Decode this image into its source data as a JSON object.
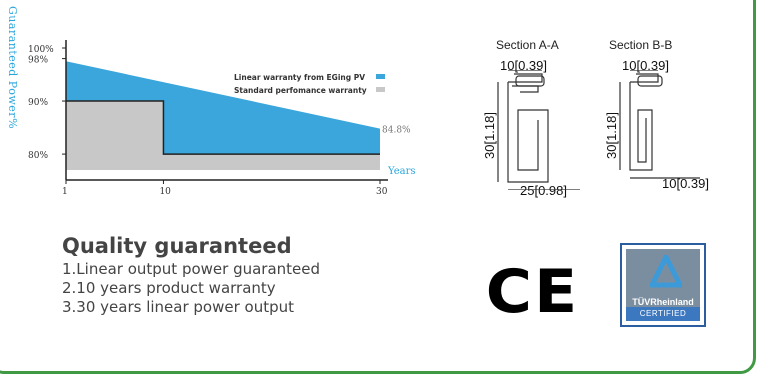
{
  "chart_data": {
    "type": "area",
    "ylabel": "Guaranteed Power%",
    "xlabel": "Years",
    "x_ticks": [
      "1",
      "10",
      "30"
    ],
    "y_ticks": [
      "100%",
      "98%",
      "90%",
      "80%"
    ],
    "series": [
      {
        "name": "Linear warranty from EGing PV",
        "color": "#3aa6dc",
        "points": [
          [
            1,
            97.5
          ],
          [
            30,
            84.8
          ]
        ]
      },
      {
        "name": "Standard perfomance warranty",
        "color": "#c8c8c8",
        "points": [
          [
            1,
            90
          ],
          [
            10,
            90
          ],
          [
            10,
            80
          ],
          [
            30,
            80
          ]
        ]
      }
    ],
    "end_label": "84.8%",
    "xlim": [
      1,
      30
    ],
    "ylim": [
      77,
      100
    ],
    "legend": "top-right"
  },
  "quality": {
    "title": "Quality guaranteed",
    "items": [
      "1.Linear output power guaranteed",
      "2.10 years product warranty",
      "3.30 years linear power output"
    ]
  },
  "sections": {
    "a": {
      "title": "Section A-A",
      "top": "10[0.39]",
      "height": "30[1.18]",
      "bottom": "25[0.98]"
    },
    "b": {
      "title": "Section B-B",
      "top": "10[0.39]",
      "height": "30[1.18]",
      "bottom": "10[0.39]"
    }
  },
  "badges": {
    "ce": "CE",
    "tuv_name": "TÜVRheinland",
    "tuv_cert": "CERTIFIED"
  }
}
